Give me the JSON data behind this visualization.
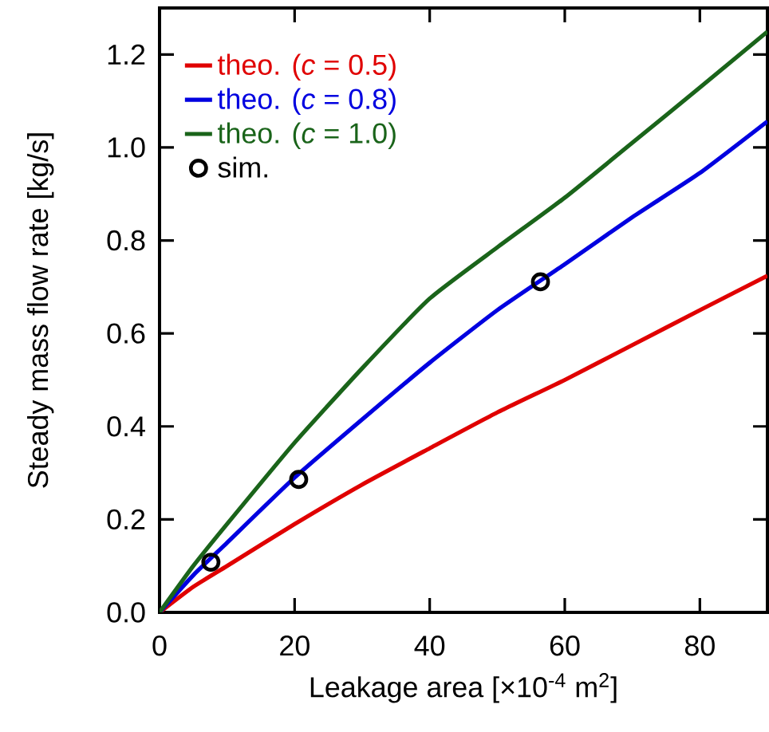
{
  "chart_data": {
    "type": "line",
    "xlabel": "Leakage area [×10$^{-4}$ m$^{2}$]",
    "ylabel": "Steady mass flow rate [kg/s]",
    "xlim": [
      0,
      90
    ],
    "ylim": [
      0,
      1.3
    ],
    "xticks": [
      0,
      20,
      40,
      60,
      80
    ],
    "yticks": [
      {
        "value": 0,
        "label": "0.0"
      },
      {
        "value": 0.2,
        "label": "0.2"
      },
      {
        "value": 0.4,
        "label": "0.4"
      },
      {
        "value": 0.6,
        "label": "0.6"
      },
      {
        "value": 0.8,
        "label": "0.8"
      },
      {
        "value": 1.0,
        "label": "1.0"
      },
      {
        "value": 1.2,
        "label": "1.2"
      }
    ],
    "legend": "top left",
    "grid": false,
    "series": [
      {
        "name": "theo. (*c* = 0.5)",
        "color": "#e00000",
        "marker": "none",
        "x": [
          0,
          5,
          10,
          20,
          30,
          40,
          50,
          60,
          70,
          80,
          90
        ],
        "values": [
          0,
          0.055,
          0.1,
          0.19,
          0.275,
          0.353,
          0.43,
          0.5,
          0.575,
          0.65,
          0.724
        ]
      },
      {
        "name": "theo. (*c* = 0.8)",
        "color": "#0000e0",
        "marker": "none",
        "x": [
          0,
          5,
          10,
          20,
          30,
          40,
          50,
          60,
          70,
          80,
          90
        ],
        "values": [
          0,
          0.08,
          0.15,
          0.29,
          0.415,
          0.537,
          0.65,
          0.749,
          0.85,
          0.945,
          1.056
        ]
      },
      {
        "name": "theo. (*c* = 1.0)",
        "color": "#1a641a",
        "marker": "none",
        "x": [
          0,
          5,
          10,
          20,
          30,
          40,
          50,
          60,
          70,
          80,
          90
        ],
        "values": [
          0,
          0.1,
          0.19,
          0.365,
          0.525,
          0.675,
          0.785,
          0.892,
          1.01,
          1.129,
          1.249
        ]
      },
      {
        "name": "sim.",
        "color": "#000000",
        "type": "scatter",
        "marker": "circle",
        "x": [
          7.6,
          20.6,
          56.4
        ],
        "values": [
          0.108,
          0.286,
          0.711
        ]
      }
    ]
  }
}
